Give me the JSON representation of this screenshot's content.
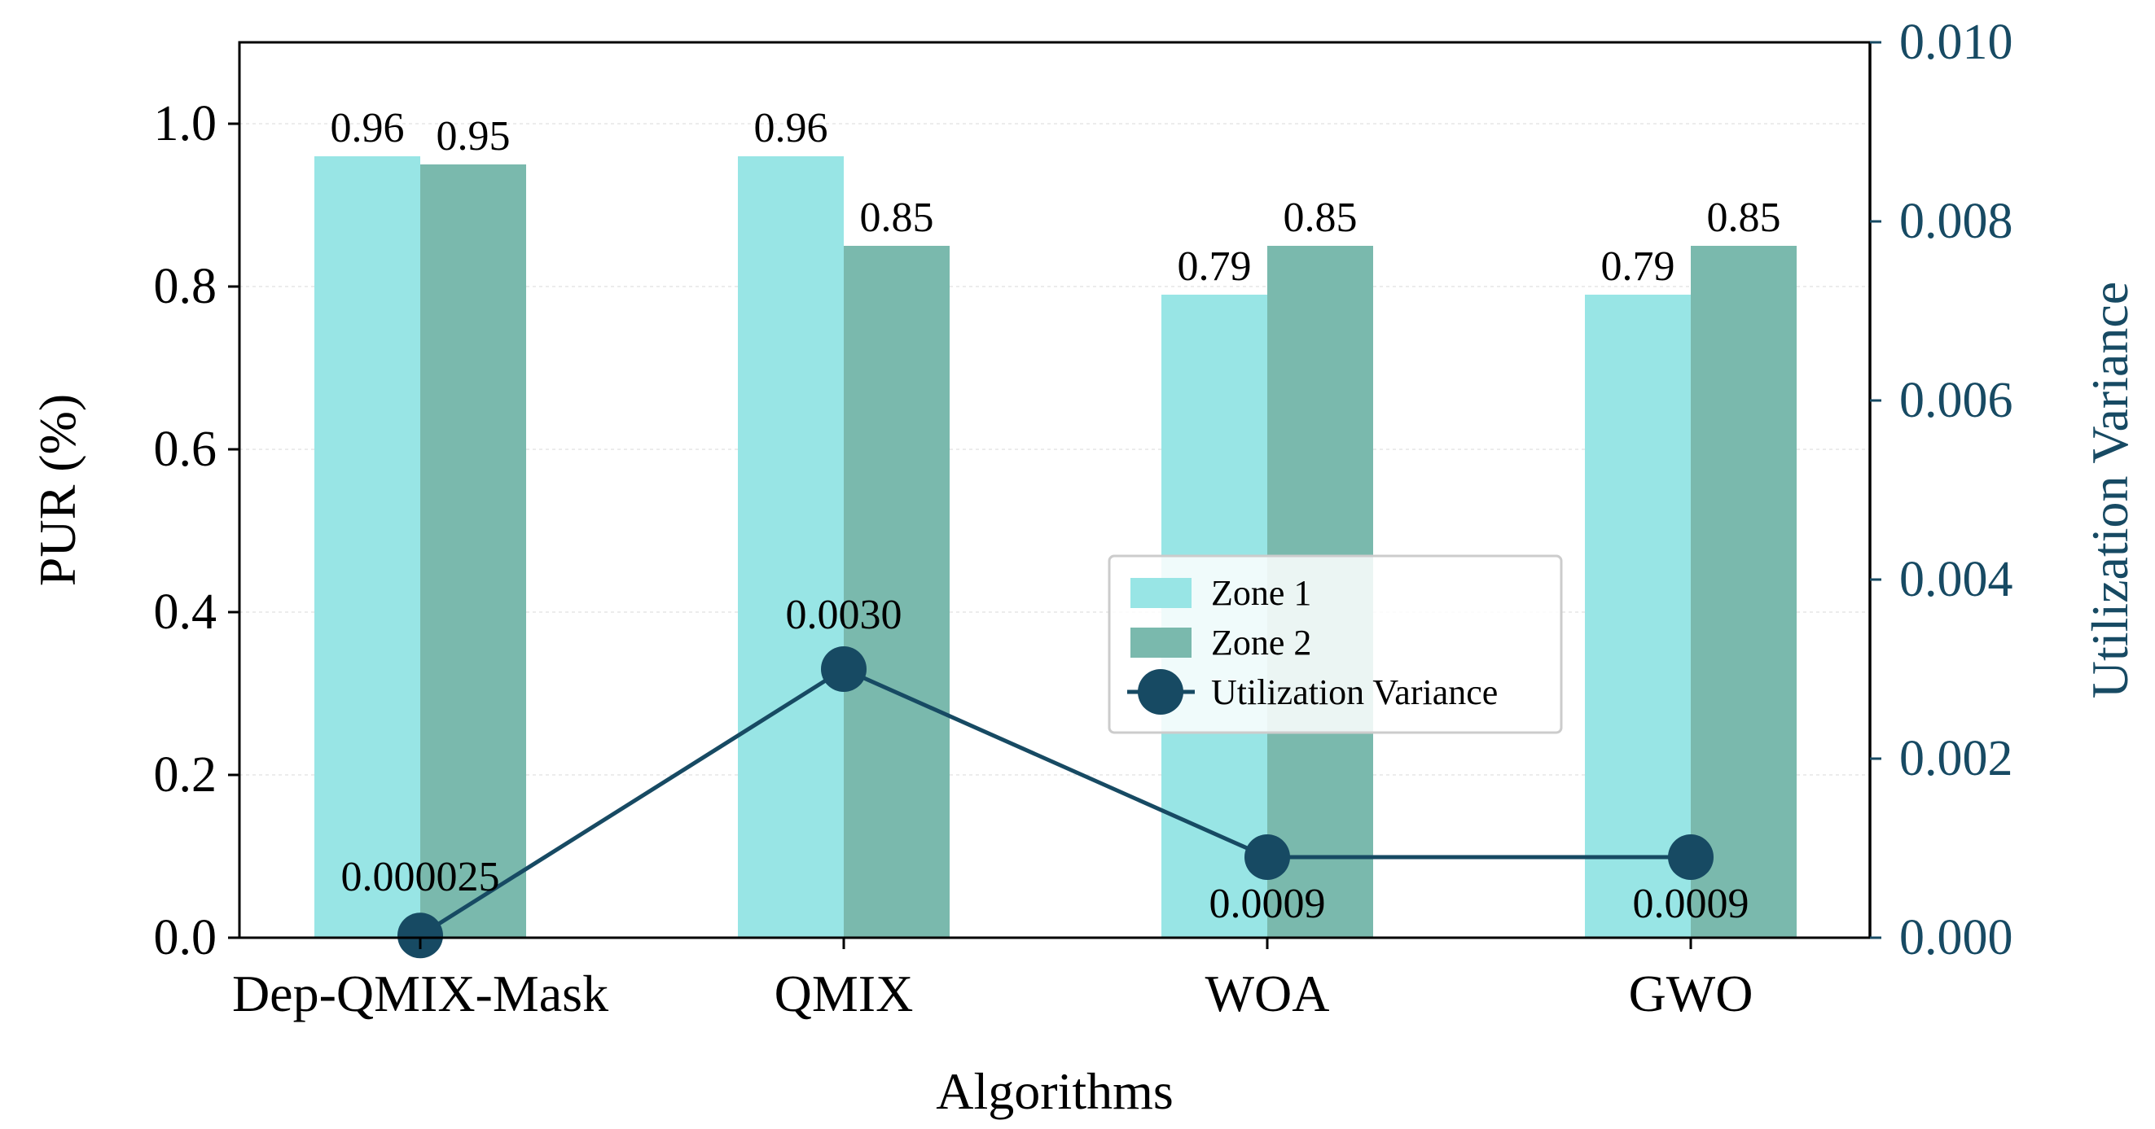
{
  "chart_data": {
    "type": "bar",
    "categories": [
      "Dep-QMIX-Mask",
      "QMIX",
      "WOA",
      "GWO"
    ],
    "series": [
      {
        "name": "Zone 1",
        "axis": "left",
        "kind": "bar",
        "color": "#98E5E5",
        "values": [
          0.96,
          0.96,
          0.79,
          0.79
        ],
        "labels": [
          "0.96",
          "0.96",
          "0.79",
          "0.79"
        ]
      },
      {
        "name": "Zone 2",
        "axis": "left",
        "kind": "bar",
        "color": "#7AB9AD",
        "values": [
          0.95,
          0.85,
          0.85,
          0.85
        ],
        "labels": [
          "0.95",
          "0.85",
          "0.85",
          "0.85"
        ]
      },
      {
        "name": "Utilization Variance",
        "axis": "right",
        "kind": "line",
        "color": "#174A63",
        "values": [
          2.5e-05,
          0.003,
          0.0009,
          0.0009
        ],
        "labels": [
          "0.000025",
          "0.0030",
          "0.0009",
          "0.0009"
        ]
      }
    ],
    "xlabel": "Algorithms",
    "ylabel": "PUR (%)",
    "y2label": "Utilization Variance",
    "ylim": [
      0,
      1.1
    ],
    "y2lim": [
      0,
      0.01
    ],
    "yticks": [
      "0.0",
      "0.2",
      "0.4",
      "0.6",
      "0.8",
      "1.0"
    ],
    "y2ticks": [
      "0.000",
      "0.002",
      "0.004",
      "0.006",
      "0.008",
      "0.010"
    ],
    "legend_position": "center-right",
    "grid": true,
    "axis_color_right": "#174A63"
  }
}
